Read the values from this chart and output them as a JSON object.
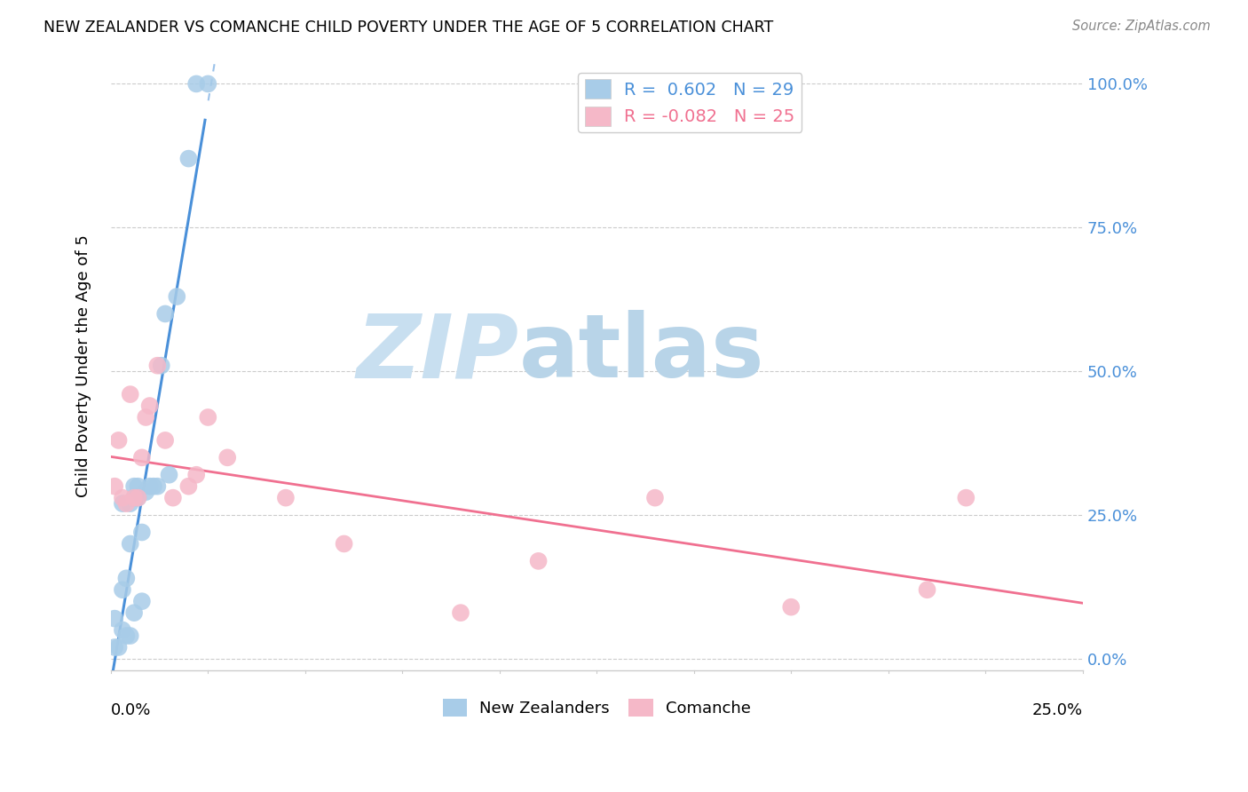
{
  "title": "NEW ZEALANDER VS COMANCHE CHILD POVERTY UNDER THE AGE OF 5 CORRELATION CHART",
  "source": "Source: ZipAtlas.com",
  "ylabel": "Child Poverty Under the Age of 5",
  "ytick_values": [
    0.0,
    0.25,
    0.5,
    0.75,
    1.0
  ],
  "ytick_labels": [
    "0.0%",
    "25.0%",
    "50.0%",
    "75.0%",
    "100.0%"
  ],
  "xmin": 0.0,
  "xmax": 0.25,
  "ymin": -0.02,
  "ymax": 1.04,
  "legend_nz_R": "0.602",
  "legend_nz_N": "29",
  "legend_co_R": "-0.082",
  "legend_co_N": "25",
  "nz_color": "#a8cce8",
  "co_color": "#f5b8c8",
  "nz_line_color": "#4a90d9",
  "co_line_color": "#f07090",
  "nz_scatter_x": [
    0.001,
    0.001,
    0.002,
    0.003,
    0.003,
    0.003,
    0.004,
    0.004,
    0.005,
    0.005,
    0.005,
    0.006,
    0.006,
    0.006,
    0.007,
    0.007,
    0.008,
    0.008,
    0.009,
    0.01,
    0.011,
    0.012,
    0.013,
    0.014,
    0.015,
    0.017,
    0.02,
    0.022,
    0.025
  ],
  "nz_scatter_y": [
    0.02,
    0.07,
    0.02,
    0.05,
    0.12,
    0.27,
    0.04,
    0.14,
    0.04,
    0.2,
    0.27,
    0.08,
    0.28,
    0.3,
    0.28,
    0.3,
    0.1,
    0.22,
    0.29,
    0.3,
    0.3,
    0.3,
    0.51,
    0.6,
    0.32,
    0.63,
    0.87,
    1.0,
    1.0
  ],
  "co_scatter_x": [
    0.001,
    0.002,
    0.003,
    0.004,
    0.005,
    0.006,
    0.007,
    0.008,
    0.009,
    0.01,
    0.012,
    0.014,
    0.016,
    0.02,
    0.022,
    0.025,
    0.03,
    0.045,
    0.06,
    0.09,
    0.11,
    0.14,
    0.175,
    0.21,
    0.22
  ],
  "co_scatter_y": [
    0.3,
    0.38,
    0.28,
    0.27,
    0.46,
    0.28,
    0.28,
    0.35,
    0.42,
    0.44,
    0.51,
    0.38,
    0.28,
    0.3,
    0.32,
    0.42,
    0.35,
    0.28,
    0.2,
    0.08,
    0.17,
    0.28,
    0.09,
    0.12,
    0.28
  ],
  "background_color": "#ffffff",
  "watermark_zip": "ZIP",
  "watermark_atlas": "atlas",
  "watermark_color_zip": "#c8dff0",
  "watermark_color_atlas": "#b8d4e8",
  "grid_color": "#cccccc",
  "spine_color": "#cccccc"
}
